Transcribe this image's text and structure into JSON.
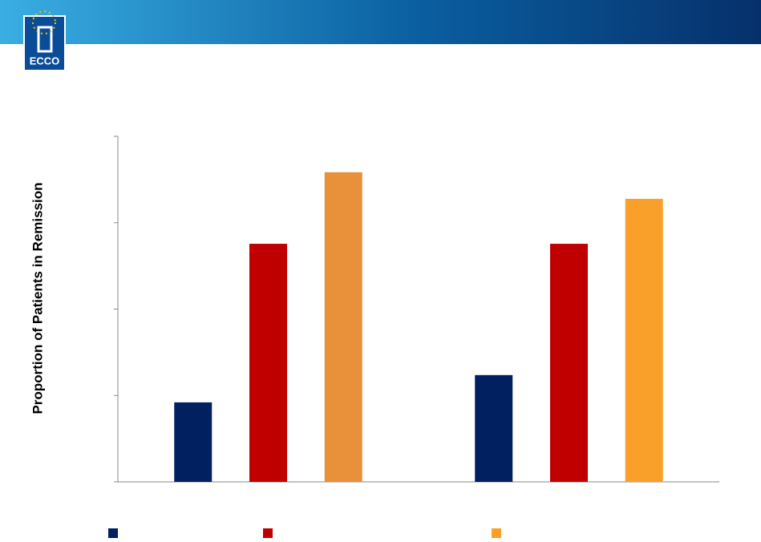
{
  "logo": {
    "text": "ECCO"
  },
  "chart_data": {
    "type": "bar",
    "y_label": "Proportion of Patients in Remission",
    "categories": [
      null,
      null
    ],
    "series": [
      {
        "color": "#002060",
        "values": [
          23.0,
          30.9
        ]
      },
      {
        "color": "#c00000",
        "values": [
          68.9,
          68.9
        ]
      },
      {
        "color": "#f8a02a",
        "colors": [
          "#e8913a",
          "#f8a02a"
        ],
        "values": [
          89.6,
          81.9
        ]
      }
    ],
    "ylim": [
      0,
      100
    ],
    "yticks": [
      0,
      25,
      50,
      75,
      100
    ],
    "grid": false
  }
}
